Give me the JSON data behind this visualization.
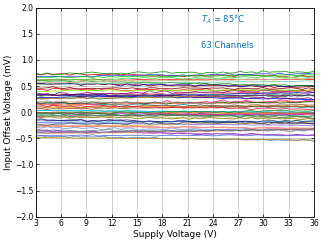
{
  "xlabel": "Supply Voltage (V)",
  "ylabel": "Input Offset Voltage (mV)",
  "annotation_line1": "T$_A$ = 85°C",
  "annotation_line2": "63 Channels",
  "annotation_color": "#0070C0",
  "xlim": [
    3,
    36
  ],
  "ylim": [
    -2,
    2
  ],
  "xticks": [
    3,
    6,
    9,
    12,
    15,
    18,
    21,
    24,
    27,
    30,
    33,
    36
  ],
  "yticks": [
    -2,
    -1.5,
    -1,
    -0.5,
    0,
    0.5,
    1,
    1.5,
    2
  ],
  "n_channels": 63,
  "x_start": 3,
  "x_end": 36,
  "n_points": 50,
  "background_color": "#ffffff",
  "seed": 42,
  "colors_pool": [
    "#FF0000",
    "#CC0000",
    "#EE0000",
    "#AA0000",
    "#FF3333",
    "#0000FF",
    "#0000CC",
    "#3333FF",
    "#000099",
    "#008000",
    "#006600",
    "#009900",
    "#00CC00",
    "#800080",
    "#660066",
    "#9900CC",
    "#FF8C00",
    "#FF6600",
    "#FFA500",
    "#00CED1",
    "#008B8B",
    "#20B2AA",
    "#00BFFF",
    "#8B4513",
    "#A0522D",
    "#CD853F",
    "#D2691E",
    "#DC143C",
    "#FF1493",
    "#C71585",
    "#006400",
    "#228B22",
    "#2E8B57",
    "#3CB371",
    "#4B0082",
    "#483D8B",
    "#6A0DAD",
    "#4682B4",
    "#1E90FF",
    "#6495ED",
    "#4169E1",
    "#DAA520",
    "#B8860B",
    "#BDB76B",
    "#9370DB",
    "#7B68EE",
    "#BA55D3",
    "#FA8072",
    "#F08080",
    "#FFA07A",
    "#32CD32",
    "#7CFC00",
    "#90EE90",
    "#66CDAA",
    "#BC8F8F",
    "#D2B48C",
    "#708090",
    "#2F4F4F",
    "#696969",
    "#808000",
    "#556B2F",
    "#191970",
    "#800000",
    "#8B0000"
  ],
  "figsize": [
    3.23,
    2.43
  ],
  "dpi": 100
}
